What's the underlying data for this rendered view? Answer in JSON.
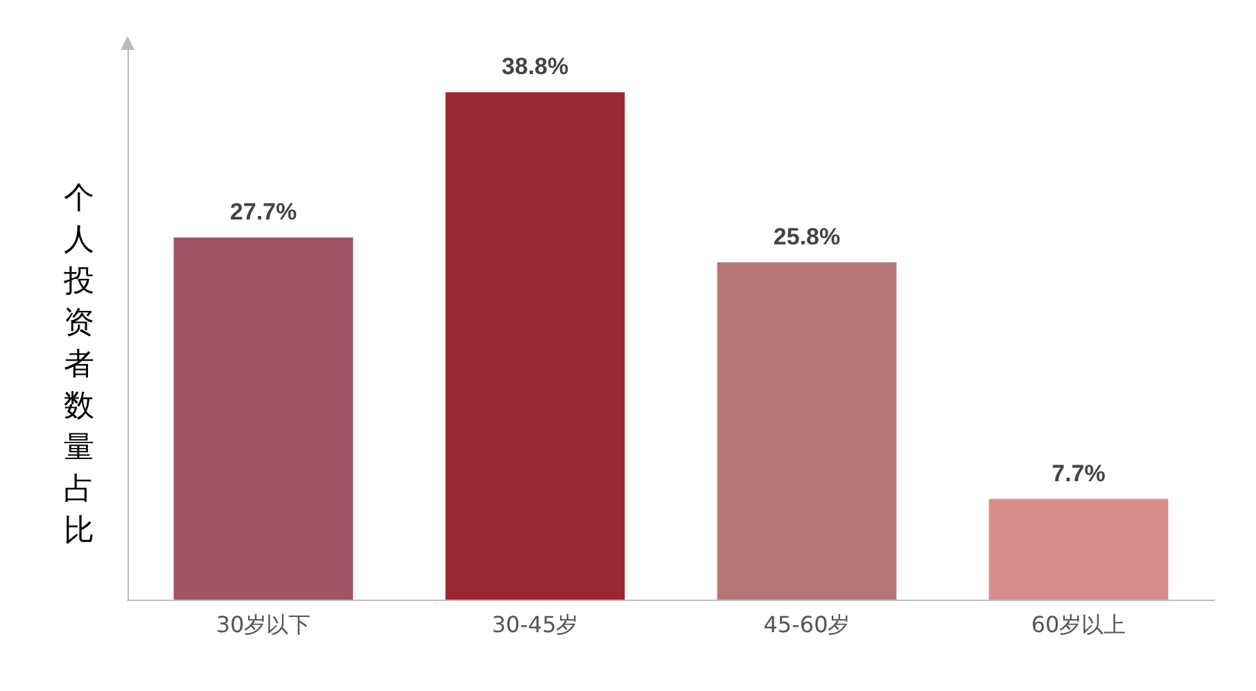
{
  "chart_data": {
    "type": "bar",
    "ylabel": "个人投资者数量占比",
    "categories": [
      "30岁以下",
      "30-45岁",
      "45-60岁",
      "60岁以上"
    ],
    "values": [
      27.7,
      38.8,
      25.8,
      7.7
    ],
    "colors": [
      "#9e5565",
      "#9b2733",
      "#b57775",
      "#d98d8d"
    ],
    "value_labels": [
      "27.7%",
      "38.8%",
      "25.8%",
      "7.7%"
    ],
    "grid": false,
    "tick_labels": "x"
  }
}
